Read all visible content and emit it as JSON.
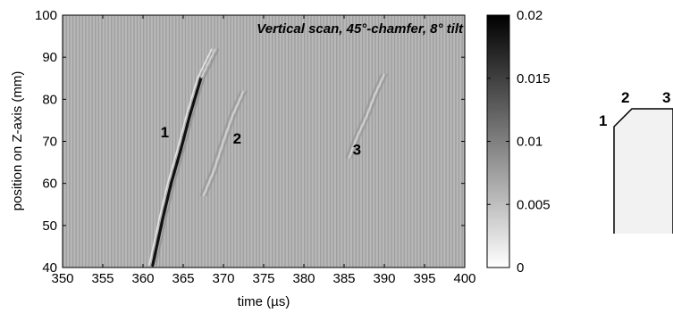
{
  "chart_data": {
    "type": "heatmap",
    "title": "Vertical scan, 45°-chamfer, 8° tilt",
    "xlabel": "time (µs)",
    "ylabel": "position on Z-axis (mm)",
    "xlim": [
      350,
      400
    ],
    "ylim": [
      40,
      100
    ],
    "xticks": [
      350,
      355,
      360,
      365,
      370,
      375,
      380,
      385,
      390,
      395,
      400
    ],
    "yticks": [
      40,
      50,
      60,
      70,
      80,
      90,
      100
    ],
    "colorbar": {
      "range": [
        0,
        0.02
      ],
      "ticks": [
        "0",
        "0.005",
        "0.01",
        "0.015",
        "0.02"
      ],
      "colormap": "gray-reversed"
    },
    "echoes": [
      {
        "label": "1",
        "label_at": [
          362.7,
          71
        ],
        "path": [
          [
            361.2,
            40.5
          ],
          [
            362.5,
            52
          ],
          [
            363.5,
            60
          ],
          [
            364.7,
            68
          ],
          [
            365.8,
            76
          ],
          [
            367.2,
            85
          ],
          [
            369,
            92
          ]
        ],
        "peak": 0.02
      },
      {
        "label": "2",
        "label_at": [
          371.7,
          69.5
        ],
        "path": [
          [
            367.5,
            57
          ],
          [
            368.8,
            63
          ],
          [
            370,
            70
          ],
          [
            371.1,
            76
          ],
          [
            372.5,
            82
          ]
        ],
        "peak": 0.004
      },
      {
        "label": "3",
        "label_at": [
          386.6,
          66.8
        ],
        "path": [
          [
            385.6,
            66
          ],
          [
            386.6,
            71
          ],
          [
            387.8,
            76
          ],
          [
            388.8,
            81
          ],
          [
            390,
            86
          ]
        ],
        "peak": 0.003
      }
    ]
  },
  "inset": {
    "labels": [
      "1",
      "2",
      "3"
    ]
  }
}
